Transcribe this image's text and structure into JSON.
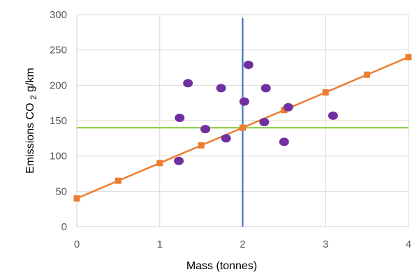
{
  "chart_data": {
    "type": "scatter",
    "xlabel": "Mass (tonnes)",
    "ylabel": {
      "main": "Emissions CO",
      "subscript": "2",
      "suffix": " g/km"
    },
    "xlim": [
      0,
      4
    ],
    "ylim": [
      0,
      300
    ],
    "x_ticks": [
      "0",
      "1",
      "2",
      "3",
      "4"
    ],
    "y_ticks": [
      "0",
      "50",
      "100",
      "150",
      "200",
      "250",
      "300"
    ],
    "grid": true,
    "legend": "none",
    "series": [
      {
        "type": "scatter",
        "marker": "circle",
        "color": "#7030a0",
        "points": [
          {
            "x": 1.23,
            "y": 93
          },
          {
            "x": 1.24,
            "y": 154
          },
          {
            "x": 1.34,
            "y": 203
          },
          {
            "x": 1.55,
            "y": 138
          },
          {
            "x": 1.74,
            "y": 196
          },
          {
            "x": 1.8,
            "y": 125
          },
          {
            "x": 2.02,
            "y": 177
          },
          {
            "x": 2.07,
            "y": 229
          },
          {
            "x": 2.26,
            "y": 148
          },
          {
            "x": 2.28,
            "y": 196
          },
          {
            "x": 2.5,
            "y": 120
          },
          {
            "x": 2.55,
            "y": 169
          },
          {
            "x": 3.09,
            "y": 157
          }
        ]
      },
      {
        "type": "line",
        "marker": "square",
        "color": "#ed7d31",
        "points": [
          {
            "x": 0,
            "y": 40
          },
          {
            "x": 0.5,
            "y": 65
          },
          {
            "x": 1,
            "y": 90
          },
          {
            "x": 1.5,
            "y": 115
          },
          {
            "x": 2,
            "y": 140
          },
          {
            "x": 2.5,
            "y": 165
          },
          {
            "x": 3,
            "y": 190
          },
          {
            "x": 3.5,
            "y": 215
          },
          {
            "x": 4,
            "y": 240
          }
        ]
      },
      {
        "type": "hline",
        "color": "#92d050",
        "y": 140
      },
      {
        "type": "vline",
        "color": "#4472c4",
        "x": 2,
        "y_range": [
          0,
          295
        ]
      }
    ]
  }
}
